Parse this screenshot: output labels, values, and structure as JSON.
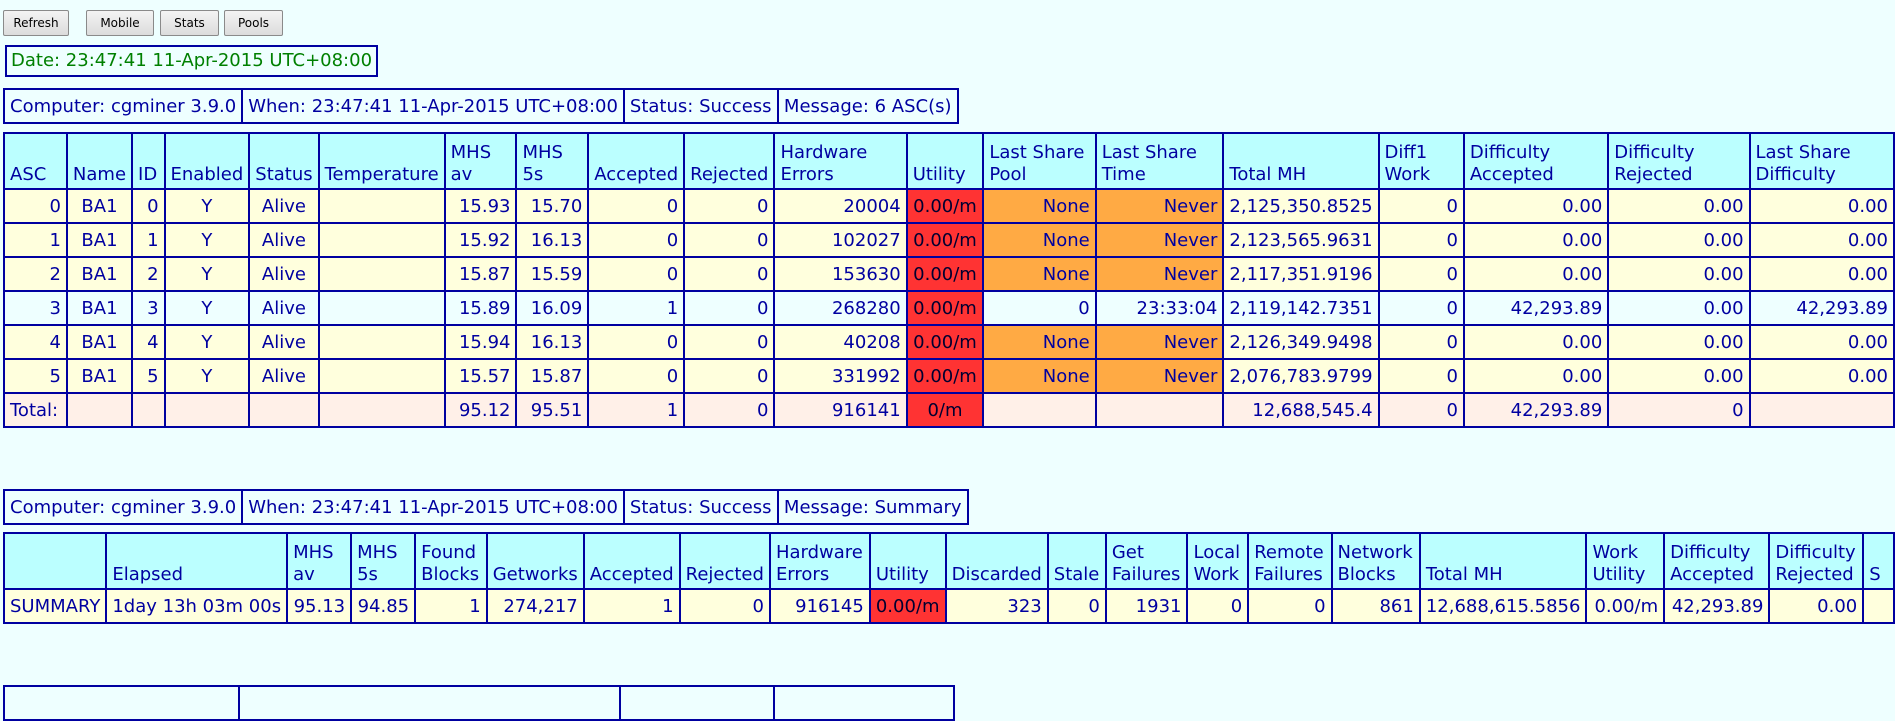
{
  "buttons": [
    "Refresh",
    "Mobile",
    "Stats",
    "Pools"
  ],
  "date_line": "Date: 23:47:41 11-Apr-2015 UTC+08:00",
  "info1": {
    "computer": "Computer: cgminer 3.9.0",
    "when": "When: 23:47:41 11-Apr-2015 UTC+08:00",
    "status": "Status: Success",
    "message": "Message: 6 ASC(s)"
  },
  "asc_table": {
    "headers": [
      "ASC",
      "Name",
      "ID",
      "Enabled",
      "Status",
      "Temperature",
      "MHS av",
      "MHS 5s",
      "Accepted",
      "Rejected",
      "Hardware Errors",
      "Utility",
      "Last Share Pool",
      "Last Share Time",
      "Total MH",
      "Diff1 Work",
      "Difficulty Accepted",
      "Difficulty Rejected",
      "Last Share Difficulty"
    ],
    "rows": [
      [
        "0",
        "BA1",
        "0",
        "Y",
        "Alive",
        "",
        "15.93",
        "15.70",
        "0",
        "0",
        "20004",
        "0.00/m",
        "None",
        "Never",
        "2,125,350.8525",
        "0",
        "0.00",
        "0.00",
        "0.00"
      ],
      [
        "1",
        "BA1",
        "1",
        "Y",
        "Alive",
        "",
        "15.92",
        "16.13",
        "0",
        "0",
        "102027",
        "0.00/m",
        "None",
        "Never",
        "2,123,565.9631",
        "0",
        "0.00",
        "0.00",
        "0.00"
      ],
      [
        "2",
        "BA1",
        "2",
        "Y",
        "Alive",
        "",
        "15.87",
        "15.59",
        "0",
        "0",
        "153630",
        "0.00/m",
        "None",
        "Never",
        "2,117,351.9196",
        "0",
        "0.00",
        "0.00",
        "0.00"
      ],
      [
        "3",
        "BA1",
        "3",
        "Y",
        "Alive",
        "",
        "15.89",
        "16.09",
        "1",
        "0",
        "268280",
        "0.00/m",
        "0",
        "23:33:04",
        "2,119,142.7351",
        "0",
        "42,293.89",
        "0.00",
        "42,293.89"
      ],
      [
        "4",
        "BA1",
        "4",
        "Y",
        "Alive",
        "",
        "15.94",
        "16.13",
        "0",
        "0",
        "40208",
        "0.00/m",
        "None",
        "Never",
        "2,126,349.9498",
        "0",
        "0.00",
        "0.00",
        "0.00"
      ],
      [
        "5",
        "BA1",
        "5",
        "Y",
        "Alive",
        "",
        "15.57",
        "15.87",
        "0",
        "0",
        "331992",
        "0.00/m",
        "None",
        "Never",
        "2,076,783.9799",
        "0",
        "0.00",
        "0.00",
        "0.00"
      ]
    ],
    "total": [
      "Total:",
      "",
      "",
      "",
      "",
      "",
      "95.12",
      "95.51",
      "1",
      "0",
      "916141",
      "0/m",
      "",
      "",
      "12,688,545.4",
      "0",
      "42,293.89",
      "0",
      ""
    ]
  },
  "info2": {
    "computer": "Computer: cgminer 3.9.0",
    "when": "When: 23:47:41 11-Apr-2015 UTC+08:00",
    "status": "Status: Success",
    "message": "Message: Summary"
  },
  "summary_table": {
    "headers": [
      "",
      "Elapsed",
      "MHS av",
      "MHS 5s",
      "Found Blocks",
      "Getworks",
      "Accepted",
      "Rejected",
      "Hardware Errors",
      "Utility",
      "Discarded",
      "Stale",
      "Get Failures",
      "Local Work",
      "Remote Failures",
      "Network Blocks",
      "Total MH",
      "Work Utility",
      "Difficulty Accepted",
      "Difficulty Rejected",
      "S"
    ],
    "row": [
      "SUMMARY",
      "1day 13h 03m 00s",
      "95.13",
      "94.85",
      "1",
      "274,217",
      "1",
      "0",
      "916145",
      "0.00/m",
      "323",
      "0",
      "1931",
      "0",
      "0",
      "861",
      "12,688,615.5856",
      "0.00/m",
      "42,293.89",
      "0.00",
      ""
    ]
  }
}
